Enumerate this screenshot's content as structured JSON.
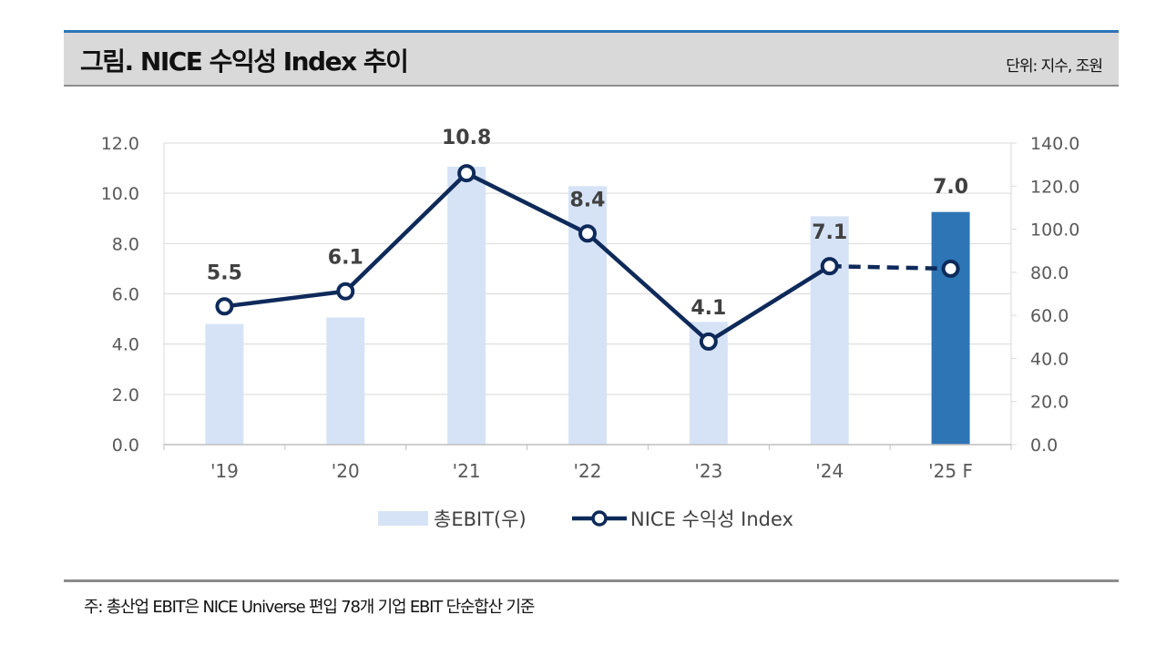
{
  "header": {
    "title": "그림. NICE 수익성 Index 추이",
    "unit": "단위: 지수, 조원"
  },
  "footnote": "주: 총산업 EBIT은 NICE Universe 편입 78개 기업 EBIT 단순합산 기준",
  "colors": {
    "bar": "#d6e3f7",
    "bar_forecast": "#2e75b6",
    "line": "#0e2a5a",
    "axis_text": "#595959",
    "grid": "#d9d9d9"
  },
  "chart_data": {
    "type": "bar+line",
    "categories": [
      "'19",
      "'20",
      "'21",
      "'22",
      "'23",
      "'24",
      "'25 F"
    ],
    "series": [
      {
        "name": "총EBIT(우)",
        "type": "bar",
        "axis": "right",
        "values": [
          56,
          59,
          129,
          120,
          57,
          106,
          108
        ],
        "forecast_index": 6
      },
      {
        "name": "NICE 수익성 Index",
        "type": "line",
        "axis": "left",
        "values": [
          5.5,
          6.1,
          10.8,
          8.4,
          4.1,
          7.1,
          7.0
        ],
        "labels": [
          "5.5",
          "6.1",
          "10.8",
          "8.4",
          "4.1",
          "7.1",
          "7.0"
        ],
        "dashed_from_index": 5
      }
    ],
    "y_left": {
      "min": 0,
      "max": 12,
      "ticks": [
        "0.0",
        "2.0",
        "4.0",
        "6.0",
        "8.0",
        "10.0",
        "12.0"
      ]
    },
    "y_right": {
      "min": 0,
      "max": 140,
      "ticks": [
        "0.0",
        "20.0",
        "40.0",
        "60.0",
        "80.0",
        "100.0",
        "120.0",
        "140.0"
      ]
    },
    "grid": true,
    "legend_position": "bottom"
  }
}
